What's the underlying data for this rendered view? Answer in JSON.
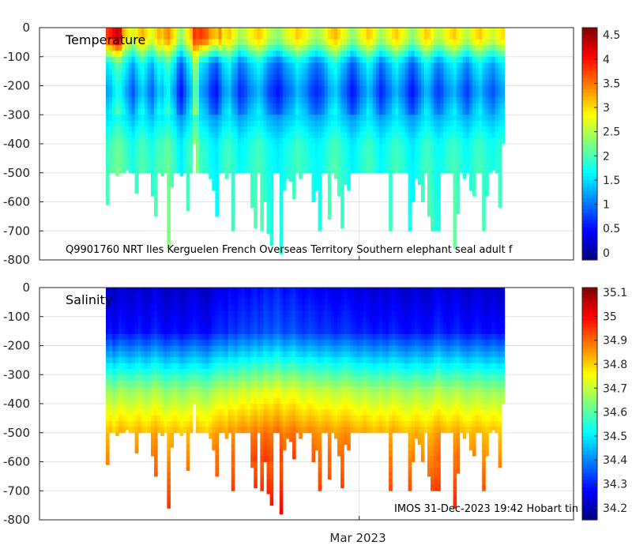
{
  "chart_data": [
    {
      "type": "heatmap",
      "title": "Temperature",
      "annotation": "Q9901760 NRT Iles Kerguelen French Overseas Territory Southern elephant seal adult f",
      "ylabel": "",
      "ylim": [
        -800,
        0
      ],
      "yticks": [
        0,
        -100,
        -200,
        -300,
        -400,
        -500,
        -600,
        -700,
        -800
      ],
      "ytick_labels": [
        "0",
        "-100",
        "-200",
        "-300",
        "-400",
        "-500",
        "-600",
        "-700",
        "-800"
      ],
      "colorbar": {
        "range": [
          -0.15,
          4.65
        ],
        "ticks": [
          4.5,
          4,
          3.5,
          3,
          2.5,
          2,
          1.5,
          1,
          0.5,
          0
        ],
        "tick_labels": [
          "4.5",
          "4",
          "3.5",
          "3",
          "2.5",
          "2",
          "1.5",
          "1",
          "0.5",
          "0"
        ],
        "colormap": "jet"
      },
      "grid": true
    },
    {
      "type": "heatmap",
      "title": "Salinity",
      "annotation": "IMOS 31-Dec-2023 19:42 Hobart tin",
      "ylabel": "",
      "ylim": [
        -800,
        0
      ],
      "yticks": [
        0,
        -100,
        -200,
        -300,
        -400,
        -500,
        -600,
        -700,
        -800
      ],
      "ytick_labels": [
        "0",
        "-100",
        "-200",
        "-300",
        "-400",
        "-500",
        "-600",
        "-700",
        "-800"
      ],
      "colorbar": {
        "range": [
          34.15,
          35.12
        ],
        "ticks": [
          35.1,
          35,
          34.9,
          34.8,
          34.7,
          34.6,
          34.5,
          34.4,
          34.3,
          34.2
        ],
        "tick_labels": [
          "35.1",
          "35",
          "34.9",
          "34.8",
          "34.7",
          "34.6",
          "34.5",
          "34.4",
          "34.3",
          "34.2"
        ],
        "colormap": "jet"
      },
      "grid": true
    }
  ],
  "xaxis": {
    "tick_labels": [
      "Mar 2023"
    ],
    "profile_count": 124,
    "mar_2023_profile_index": 78.8
  },
  "profiles": {
    "max_depth": [
      610,
      500,
      500,
      510,
      500,
      500,
      490,
      500,
      500,
      570,
      500,
      500,
      500,
      500,
      580,
      650,
      500,
      510,
      500,
      760,
      550,
      500,
      500,
      510,
      500,
      630,
      500,
      400,
      500,
      500,
      500,
      500,
      520,
      560,
      650,
      500,
      500,
      520,
      500,
      700,
      500,
      500,
      500,
      500,
      500,
      620,
      690,
      500,
      700,
      600,
      710,
      750,
      500,
      500,
      780,
      560,
      520,
      530,
      590,
      500,
      520,
      500,
      500,
      500,
      600,
      560,
      700,
      500,
      500,
      660,
      500,
      520,
      580,
      690,
      540,
      560,
      500,
      500,
      500,
      500,
      500,
      500,
      500,
      500,
      500,
      500,
      500,
      500,
      700,
      500,
      500,
      500,
      500,
      500,
      700,
      600,
      520,
      540,
      600,
      500,
      650,
      700,
      700,
      700,
      500,
      500,
      500,
      500,
      760,
      640,
      500,
      520,
      500,
      560,
      580,
      500,
      500,
      700,
      580,
      500,
      490,
      500,
      620,
      400
    ],
    "temperature_profile_shift": [
      0.2,
      0.3,
      0.5,
      0.7,
      0.6,
      0.4,
      0.2,
      0.0,
      -0.2,
      0.1,
      0.3,
      0.4,
      0.2,
      0.0,
      -0.1,
      0.2,
      0.4,
      0.3,
      0.5,
      0.6,
      0.3,
      0.1,
      -0.3,
      -0.5,
      -0.2,
      0.1,
      0.3,
      1.0,
      0.9,
      0.2,
      0.1,
      0.0,
      -0.3,
      -0.4,
      -0.5,
      -0.2,
      0.1,
      0.2,
      0.3,
      0.0,
      -0.1,
      -0.4,
      -0.3,
      -0.2,
      0.0,
      0.1,
      0.2,
      0.3,
      0.2,
      0.0,
      -0.2,
      -0.3,
      -0.4,
      -0.5,
      -0.4,
      -0.2,
      -0.1,
      0.0,
      0.1,
      0.3,
      0.2,
      0.1,
      0.0,
      -0.2,
      -0.3,
      -0.4,
      -0.3,
      -0.2,
      0.0,
      0.2,
      0.3,
      0.4,
      0.2,
      0.0,
      -0.1,
      -0.3,
      -0.5,
      -0.4,
      -0.2,
      0.0,
      0.1,
      0.3,
      0.2,
      0.0,
      -0.2,
      -0.4,
      -0.3,
      -0.1,
      0.0,
      0.2,
      0.3,
      0.1,
      0.0,
      -0.2,
      -0.4,
      -0.5,
      -0.3,
      -0.1,
      0.1,
      0.3,
      0.2,
      0.0,
      -0.2,
      -0.3,
      -0.2,
      0.0,
      0.1,
      0.2,
      0.3,
      0.1,
      0.0,
      -0.2,
      -0.3,
      -0.1,
      0.1,
      0.2,
      0.3,
      0.1,
      0.0,
      -0.1,
      -0.2,
      0.0,
      0.1,
      0.2
    ],
    "salinity_profile_shift": [
      0.0,
      0.01,
      -0.02,
      0.0,
      0.02,
      0.01,
      0.0,
      -0.01,
      0.0,
      0.01,
      0.02,
      0.0,
      -0.01,
      0.0,
      0.02,
      0.03,
      0.01,
      0.0,
      -0.02,
      -0.01,
      0.0,
      0.01,
      0.0,
      -0.02,
      -0.01,
      0.0,
      0.01,
      0.02,
      0.01,
      0.0,
      -0.01,
      -0.02,
      0.0,
      0.02,
      0.03,
      0.04,
      0.03,
      0.02,
      0.05,
      0.04,
      0.03,
      0.05,
      0.06,
      0.05,
      0.04,
      0.06,
      0.07,
      0.05,
      0.06,
      0.08,
      0.07,
      0.06,
      0.08,
      0.09,
      0.07,
      0.05,
      0.06,
      0.07,
      0.08,
      0.06,
      0.05,
      0.04,
      0.05,
      0.06,
      0.05,
      0.04,
      0.03,
      0.04,
      0.05,
      0.04,
      0.03,
      0.02,
      0.03,
      0.04,
      0.05,
      0.04,
      0.03,
      0.02,
      0.01,
      0.02,
      0.03,
      0.02,
      0.01,
      0.0,
      0.01,
      0.02,
      0.01,
      0.0,
      0.02,
      0.03,
      0.02,
      0.01,
      0.0,
      -0.01,
      0.0,
      0.01,
      0.02,
      0.01,
      0.0,
      -0.01,
      0.0,
      0.01,
      0.03,
      0.04,
      0.02,
      0.01,
      0.0,
      0.01,
      0.02,
      0.03,
      0.01,
      0.0,
      -0.01,
      0.0,
      0.01,
      0.02,
      0.01,
      0.0,
      -0.01,
      0.0,
      0.01,
      0.0,
      -0.01,
      0.0
    ]
  }
}
